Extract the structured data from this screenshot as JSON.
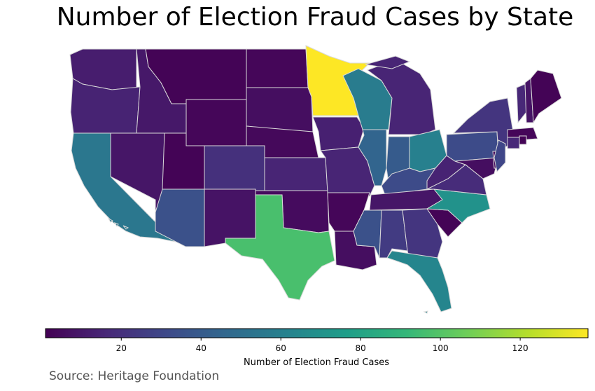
{
  "title": "Number of Election Fraud Cases by State",
  "source": "Source: Heritage Foundation",
  "colorbar": {
    "label": "Number of Election Fraud Cases",
    "min": 1,
    "max": 137,
    "ticks": [
      20,
      40,
      60,
      80,
      100,
      120
    ],
    "colormap": [
      "#440154",
      "#482878",
      "#3e4989",
      "#31688e",
      "#26828e",
      "#1f9e89",
      "#35b779",
      "#6ece58",
      "#b5de2b",
      "#fde725"
    ]
  },
  "states": [
    {
      "name": "WA",
      "value": 12
    },
    {
      "name": "OR",
      "value": 14
    },
    {
      "name": "CA",
      "value": 55
    },
    {
      "name": "ID",
      "value": 10
    },
    {
      "name": "NV",
      "value": 9
    },
    {
      "name": "MT",
      "value": 2
    },
    {
      "name": "WY",
      "value": 3
    },
    {
      "name": "UT",
      "value": 2
    },
    {
      "name": "AZ",
      "value": 35
    },
    {
      "name": "CO",
      "value": 20
    },
    {
      "name": "NM",
      "value": 8
    },
    {
      "name": "ND",
      "value": 3
    },
    {
      "name": "SD",
      "value": 6
    },
    {
      "name": "NE",
      "value": 4
    },
    {
      "name": "KS",
      "value": 15
    },
    {
      "name": "OK",
      "value": 5
    },
    {
      "name": "TX",
      "value": 97
    },
    {
      "name": "MN",
      "value": 137
    },
    {
      "name": "IA",
      "value": 13
    },
    {
      "name": "MO",
      "value": 15
    },
    {
      "name": "AR",
      "value": 3
    },
    {
      "name": "LA",
      "value": 6
    },
    {
      "name": "WI",
      "value": 58
    },
    {
      "name": "IL",
      "value": 45
    },
    {
      "name": "MI",
      "value": 15
    },
    {
      "name": "IN",
      "value": 40
    },
    {
      "name": "OH",
      "value": 60
    },
    {
      "name": "KY",
      "value": 32
    },
    {
      "name": "TN",
      "value": 9
    },
    {
      "name": "MS",
      "value": 35
    },
    {
      "name": "AL",
      "value": 25
    },
    {
      "name": "GA",
      "value": 22
    },
    {
      "name": "FL",
      "value": 63
    },
    {
      "name": "SC",
      "value": 2
    },
    {
      "name": "NC",
      "value": 70
    },
    {
      "name": "VA",
      "value": 18
    },
    {
      "name": "WV",
      "value": 14
    },
    {
      "name": "PA",
      "value": 32
    },
    {
      "name": "NY",
      "value": 22
    },
    {
      "name": "MD",
      "value": 6
    },
    {
      "name": "DE",
      "value": 4
    },
    {
      "name": "NJ",
      "value": 30
    },
    {
      "name": "VT",
      "value": 16
    },
    {
      "name": "NH",
      "value": 8
    },
    {
      "name": "ME",
      "value": 2
    },
    {
      "name": "MA",
      "value": 3
    },
    {
      "name": "CT",
      "value": 16
    },
    {
      "name": "RI",
      "value": 2
    }
  ]
}
